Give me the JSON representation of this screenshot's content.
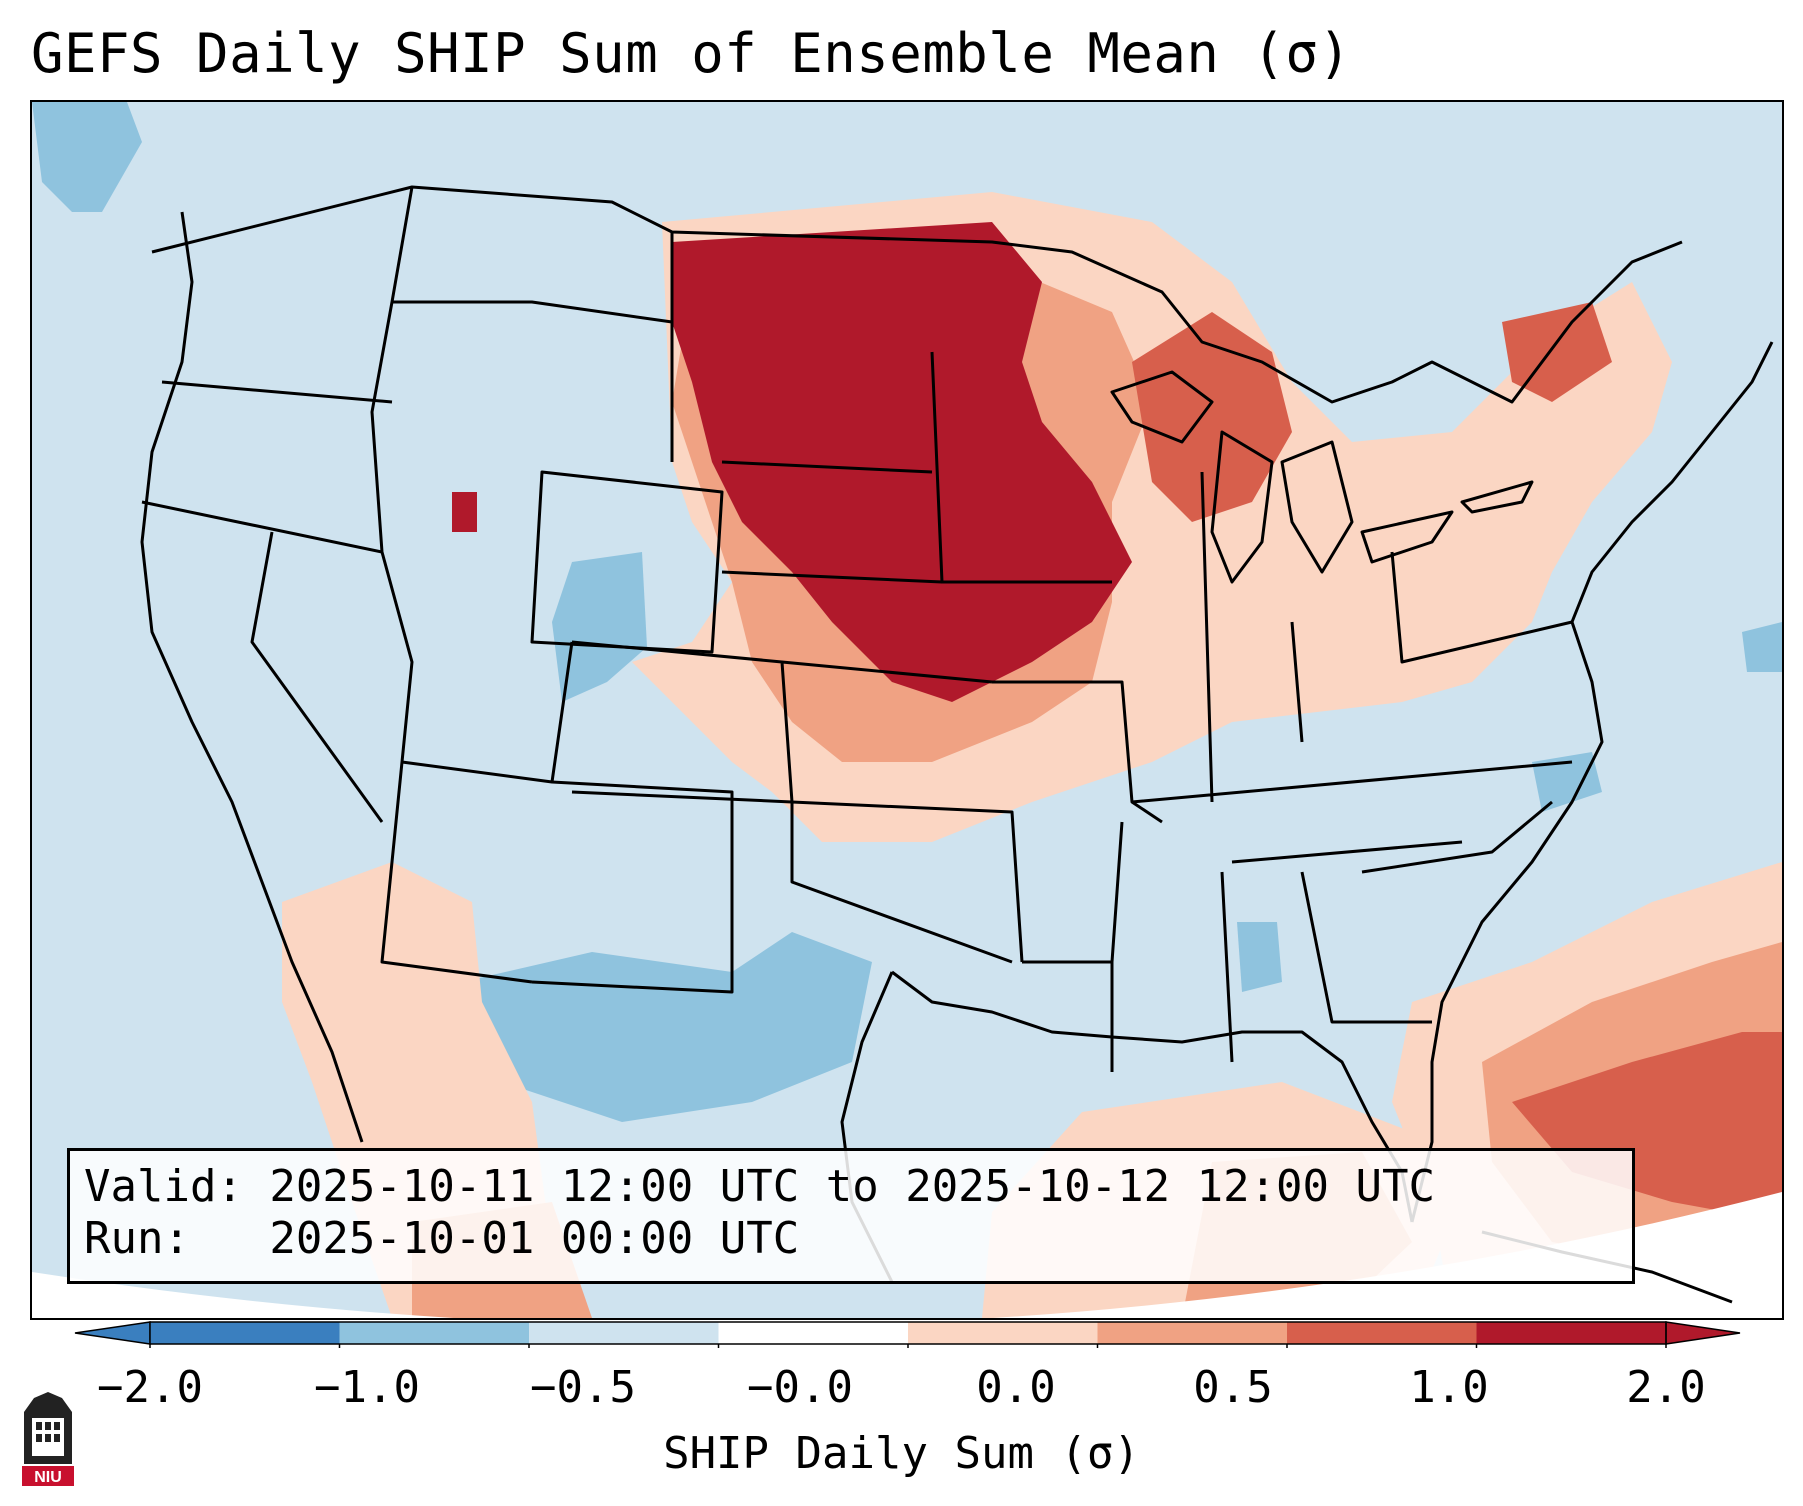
{
  "title": "GEFS Daily SHIP Sum of Ensemble Mean (σ)",
  "info": {
    "valid_line": "Valid: 2025-10-11 12:00 UTC to 2025-10-12 12:00 UTC",
    "run_line": "Run:   2025-10-01 00:00 UTC"
  },
  "colorbar": {
    "label": "SHIP Daily Sum (σ)",
    "ticks": [
      "−2.0",
      "−1.0",
      "−0.5",
      "−0.0",
      "0.0",
      "0.5",
      "1.0",
      "2.0"
    ],
    "colors": [
      "#3a7fbf",
      "#8fc3de",
      "#cfe3ef",
      "#ffffff",
      "#fbd6c3",
      "#f0a283",
      "#d75f4c",
      "#b0192b"
    ]
  },
  "logo": {
    "text": "NIU",
    "colors": {
      "dark": "#222222",
      "red": "#c8102e"
    }
  },
  "map": {
    "background_color": "#cfe3ef",
    "color_scale": {
      "neg2": "#3a7fbf",
      "neg1": "#8fc3de",
      "neutral": "#cfe3ef",
      "pos05": "#fbd6c3",
      "pos1": "#f0a283",
      "pos15": "#d75f4c",
      "pos2": "#b0192b"
    }
  }
}
